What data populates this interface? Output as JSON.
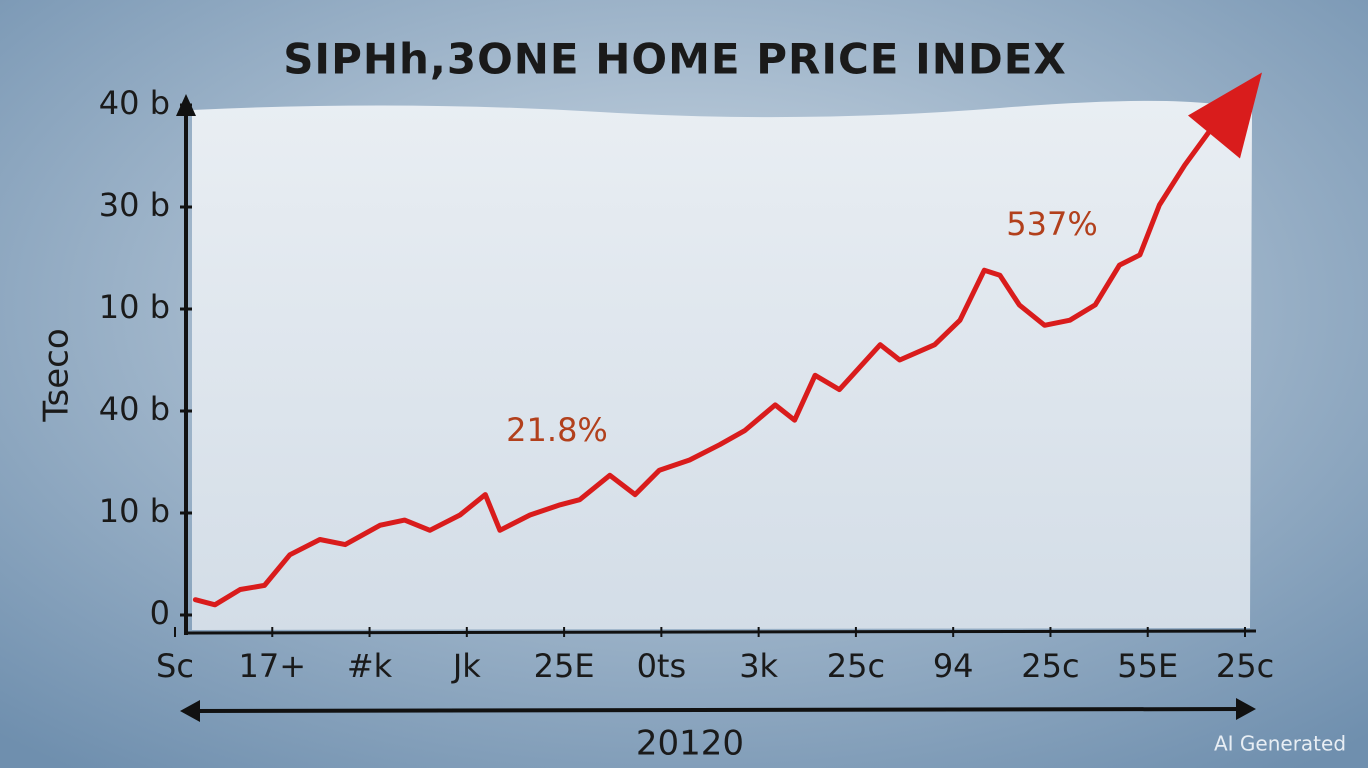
{
  "chart_data": {
    "type": "line",
    "title": "SIPHh,3ONE HOME PRICE INDEX",
    "y_label": "Tseco",
    "x_label": "20120",
    "watermark": "AI Generated",
    "xlim": [
      0,
      11
    ],
    "xticks": [
      {
        "value": 0,
        "label": "Sc"
      },
      {
        "value": 1,
        "label": "17+"
      },
      {
        "value": 2,
        "label": "#k"
      },
      {
        "value": 3,
        "label": "Jk"
      },
      {
        "value": 4,
        "label": "25E"
      },
      {
        "value": 5,
        "label": "0ts"
      },
      {
        "value": 6,
        "label": "3k"
      },
      {
        "value": 7,
        "label": "25c"
      },
      {
        "value": 8,
        "label": "94"
      },
      {
        "value": 9,
        "label": "25c"
      },
      {
        "value": 10,
        "label": "55E"
      },
      {
        "value": 11,
        "label": "25c"
      }
    ],
    "ylim": [
      0,
      5
    ],
    "yticks": [
      0,
      {
        "value": 1,
        "label": "10 b"
      },
      {
        "value": 2,
        "label": "40 b"
      },
      {
        "value": 3,
        "label": "10 b"
      },
      {
        "value": 4,
        "label": "30 b"
      },
      {
        "value": 5,
        "label": "40 b"
      }
    ],
    "series": [
      {
        "color": "#d91c1c",
        "x": [
          0.21,
          0.41,
          0.67,
          0.92,
          1.18,
          1.49,
          1.75,
          2.11,
          2.36,
          2.62,
          2.93,
          3.19,
          3.34,
          3.65,
          3.96,
          4.16,
          4.47,
          4.73,
          4.98,
          5.29,
          5.6,
          5.86,
          6.17,
          6.37,
          6.58,
          6.83,
          7.25,
          7.45,
          7.81,
          8.07,
          8.32,
          8.48,
          8.68,
          8.94,
          9.2,
          9.46,
          9.71,
          9.92,
          10.12,
          10.38,
          10.64
        ],
        "values": [
          0.15,
          0.1,
          0.25,
          0.29,
          0.59,
          0.74,
          0.69,
          0.88,
          0.93,
          0.83,
          0.98,
          1.18,
          0.83,
          0.98,
          1.08,
          1.13,
          1.37,
          1.18,
          1.42,
          1.52,
          1.67,
          1.81,
          2.06,
          1.91,
          2.35,
          2.21,
          2.65,
          2.5,
          2.65,
          2.89,
          3.38,
          3.33,
          3.04,
          2.84,
          2.89,
          3.04,
          3.43,
          3.53,
          4.02,
          4.41,
          4.75
        ]
      }
    ],
    "annotations": [
      "21.8%",
      "537%"
    ]
  }
}
